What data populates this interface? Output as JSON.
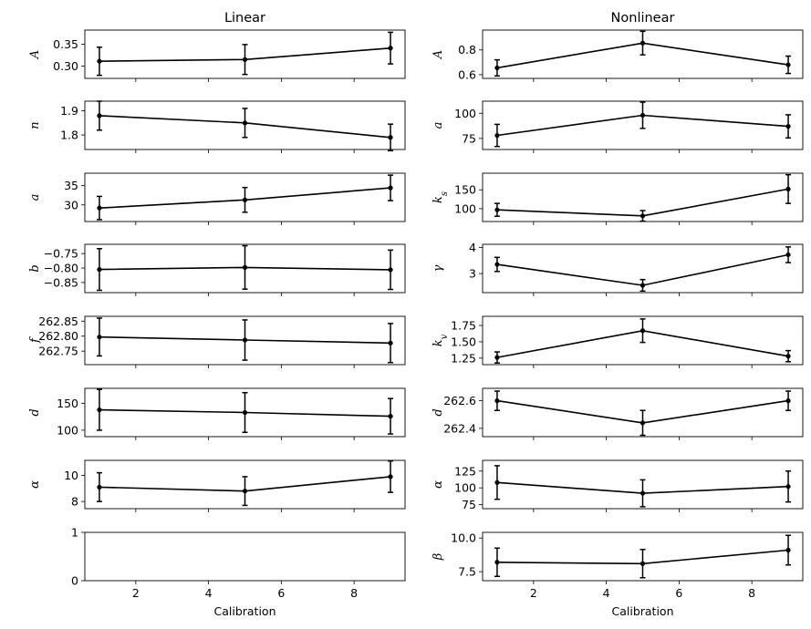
{
  "chart_data": [
    {
      "type": "line",
      "title": "Linear",
      "ylabel": "A",
      "x": [
        1,
        5,
        9
      ],
      "values": [
        0.311,
        0.315,
        0.341
      ],
      "err": [
        0.032,
        0.034,
        0.036
      ],
      "yticks": [
        0.3,
        0.35
      ],
      "ytick_labels": [
        "0.30",
        "0.35"
      ],
      "ylim": [
        0.272,
        0.382
      ],
      "xlim": [
        0.6,
        9.4
      ],
      "xticks": [
        2,
        4,
        6,
        8
      ],
      "xlabel": ""
    },
    {
      "type": "line",
      "title": "",
      "ylabel": "n",
      "x": [
        1,
        5,
        9
      ],
      "values": [
        1.88,
        1.85,
        1.79
      ],
      "err": [
        0.06,
        0.06,
        0.055
      ],
      "yticks": [
        1.8,
        1.9
      ],
      "ytick_labels": [
        "1.8",
        "1.9"
      ],
      "ylim": [
        1.74,
        1.94
      ],
      "xlim": [
        0.6,
        9.4
      ],
      "xticks": [
        2,
        4,
        6,
        8
      ],
      "xlabel": ""
    },
    {
      "type": "line",
      "title": "",
      "ylabel": "a",
      "x": [
        1,
        5,
        9
      ],
      "values": [
        29.2,
        31.3,
        34.4
      ],
      "err": [
        3.0,
        3.2,
        3.3
      ],
      "yticks": [
        30,
        35
      ],
      "ytick_labels": [
        "30",
        "35"
      ],
      "ylim": [
        25.7,
        38.2
      ],
      "xlim": [
        0.6,
        9.4
      ],
      "xticks": [
        2,
        4,
        6,
        8
      ],
      "xlabel": ""
    },
    {
      "type": "line",
      "title": "",
      "ylabel": "b",
      "x": [
        1,
        5,
        9
      ],
      "values": [
        -0.805,
        -0.798,
        -0.806
      ],
      "err": [
        0.072,
        0.075,
        0.068
      ],
      "yticks": [
        -0.85,
        -0.8,
        -0.75
      ],
      "ytick_labels": [
        "−0.85",
        "−0.80",
        "−0.75"
      ],
      "ylim": [
        -0.885,
        -0.718
      ],
      "xlim": [
        0.6,
        9.4
      ],
      "xticks": [
        2,
        4,
        6,
        8
      ],
      "xlabel": ""
    },
    {
      "type": "line",
      "title": "",
      "ylabel": "f",
      "x": [
        1,
        5,
        9
      ],
      "values": [
        262.797,
        262.787,
        262.777
      ],
      "err": [
        0.063,
        0.067,
        0.065
      ],
      "yticks": [
        262.75,
        262.8,
        262.85
      ],
      "ytick_labels": [
        "262.75",
        "262.80",
        "262.85"
      ],
      "ylim": [
        262.705,
        262.866
      ],
      "xlim": [
        0.6,
        9.4
      ],
      "xticks": [
        2,
        4,
        6,
        8
      ],
      "xlabel": ""
    },
    {
      "type": "line",
      "title": "",
      "ylabel": "d",
      "x": [
        1,
        5,
        9
      ],
      "values": [
        138,
        133,
        126
      ],
      "err": [
        38,
        37,
        33
      ],
      "yticks": [
        100,
        150
      ],
      "ytick_labels": [
        "100",
        "150"
      ],
      "ylim": [
        88,
        178
      ],
      "xlim": [
        0.6,
        9.4
      ],
      "xticks": [
        2,
        4,
        6,
        8
      ],
      "xlabel": ""
    },
    {
      "type": "line",
      "title": "",
      "ylabel": "α",
      "x": [
        1,
        5,
        9
      ],
      "values": [
        9.1,
        8.8,
        9.9
      ],
      "err": [
        1.1,
        1.1,
        1.2
      ],
      "yticks": [
        8,
        10
      ],
      "ytick_labels": [
        "8",
        "10"
      ],
      "ylim": [
        7.45,
        11.15
      ],
      "xlim": [
        0.6,
        9.4
      ],
      "xticks": [
        2,
        4,
        6,
        8
      ],
      "xlabel": ""
    },
    {
      "type": "line",
      "title": "",
      "ylabel": "",
      "x": [],
      "values": [],
      "err": [],
      "yticks": [
        0,
        1
      ],
      "ytick_labels": [
        "0",
        "1"
      ],
      "ylim": [
        0,
        1
      ],
      "xlim": [
        0.6,
        9.4
      ],
      "xticks": [
        2,
        4,
        6,
        8
      ],
      "xtick_labels": [
        "2",
        "4",
        "6",
        "8"
      ],
      "xlabel": "Calibration"
    },
    {
      "type": "line",
      "title": "Nonlinear",
      "ylabel": "A",
      "x": [
        1,
        5,
        9
      ],
      "values": [
        0.655,
        0.855,
        0.68
      ],
      "err": [
        0.065,
        0.095,
        0.07
      ],
      "yticks": [
        0.6,
        0.8
      ],
      "ytick_labels": [
        "0.6",
        "0.8"
      ],
      "ylim": [
        0.57,
        0.96
      ],
      "xlim": [
        0.6,
        9.4
      ],
      "xticks": [
        2,
        4,
        6,
        8
      ],
      "xlabel": ""
    },
    {
      "type": "line",
      "title": "",
      "ylabel": "a",
      "x": [
        1,
        5,
        9
      ],
      "values": [
        78,
        98,
        87
      ],
      "err": [
        11,
        13,
        11.5
      ],
      "yticks": [
        75,
        100
      ],
      "ytick_labels": [
        "75",
        "100"
      ],
      "ylim": [
        64,
        112
      ],
      "xlim": [
        0.6,
        9.4
      ],
      "xticks": [
        2,
        4,
        6,
        8
      ],
      "xlabel": ""
    },
    {
      "type": "line",
      "title": "",
      "ylabel": "k_s",
      "x": [
        1,
        5,
        9
      ],
      "values": [
        97,
        81,
        152
      ],
      "err": [
        17,
        14,
        38
      ],
      "yticks": [
        100,
        150
      ],
      "ytick_labels": [
        "100",
        "150"
      ],
      "ylim": [
        66,
        194
      ],
      "xlim": [
        0.6,
        9.4
      ],
      "xticks": [
        2,
        4,
        6,
        8
      ],
      "xlabel": ""
    },
    {
      "type": "line",
      "title": "",
      "ylabel": "γ",
      "x": [
        1,
        5,
        9
      ],
      "values": [
        3.35,
        2.55,
        3.72
      ],
      "err": [
        0.27,
        0.22,
        0.3
      ],
      "yticks": [
        3,
        4
      ],
      "ytick_labels": [
        "3",
        "4"
      ],
      "ylim": [
        2.27,
        4.12
      ],
      "xlim": [
        0.6,
        9.4
      ],
      "xticks": [
        2,
        4,
        6,
        8
      ],
      "xlabel": ""
    },
    {
      "type": "line",
      "title": "",
      "ylabel": "k_v",
      "x": [
        1,
        5,
        9
      ],
      "values": [
        1.26,
        1.67,
        1.28
      ],
      "err": [
        0.085,
        0.18,
        0.085
      ],
      "yticks": [
        1.25,
        1.5,
        1.75
      ],
      "ytick_labels": [
        "1.25",
        "1.50",
        "1.75"
      ],
      "ylim": [
        1.15,
        1.89
      ],
      "xlim": [
        0.6,
        9.4
      ],
      "xticks": [
        2,
        4,
        6,
        8
      ],
      "xlabel": ""
    },
    {
      "type": "line",
      "title": "",
      "ylabel": "d",
      "x": [
        1,
        5,
        9
      ],
      "values": [
        262.6,
        262.44,
        262.6
      ],
      "err": [
        0.07,
        0.09,
        0.07
      ],
      "yticks": [
        262.4,
        262.6
      ],
      "ytick_labels": [
        "262.4",
        "262.6"
      ],
      "ylim": [
        262.34,
        262.69
      ],
      "xlim": [
        0.6,
        9.4
      ],
      "xticks": [
        2,
        4,
        6,
        8
      ],
      "xlabel": ""
    },
    {
      "type": "line",
      "title": "",
      "ylabel": "α",
      "x": [
        1,
        5,
        9
      ],
      "values": [
        108,
        92,
        102
      ],
      "err": [
        25,
        20,
        23
      ],
      "yticks": [
        75,
        100,
        125
      ],
      "ytick_labels": [
        "75",
        "100",
        "125"
      ],
      "ylim": [
        69,
        141
      ],
      "xlim": [
        0.6,
        9.4
      ],
      "xticks": [
        2,
        4,
        6,
        8
      ],
      "xlabel": ""
    },
    {
      "type": "line",
      "title": "",
      "ylabel": "β",
      "x": [
        1,
        5,
        9
      ],
      "values": [
        8.2,
        8.1,
        9.1
      ],
      "err": [
        1.05,
        1.05,
        1.1
      ],
      "yticks": [
        7.5,
        10.0
      ],
      "ytick_labels": [
        "7.5",
        "10.0"
      ],
      "ylim": [
        6.83,
        10.42
      ],
      "xlim": [
        0.6,
        9.4
      ],
      "xticks": [
        2,
        4,
        6,
        8
      ],
      "xtick_labels": [
        "2",
        "4",
        "6",
        "8"
      ],
      "xlabel": "Calibration"
    }
  ]
}
